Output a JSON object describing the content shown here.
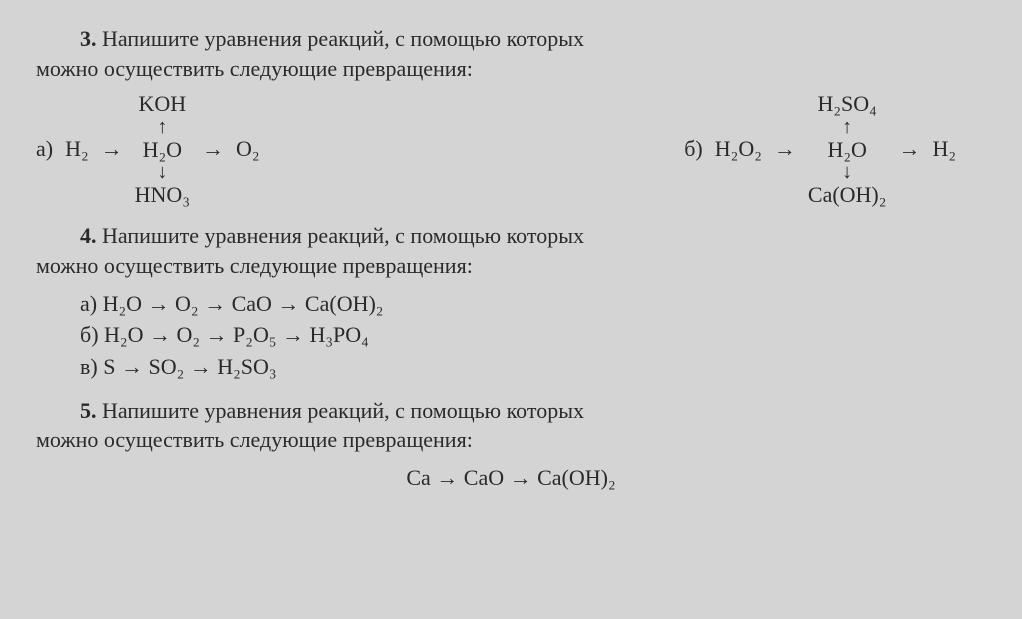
{
  "task3": {
    "number": "3.",
    "prompt_a": "Напишите уравнения реакций, с помощью которых",
    "prompt_b": "можно осуществить следующие превращения:",
    "scheme_a": {
      "label": "а)",
      "top": "KOH",
      "left": "H₂",
      "center": "H₂O",
      "right": "O₂",
      "bottom": "HNO₃"
    },
    "scheme_b": {
      "label": "б)",
      "top": "H₂SO₄",
      "left": "H₂O₂",
      "center": "H₂O",
      "right": "H₂",
      "bottom": "Ca(OH)₂"
    }
  },
  "task4": {
    "number": "4.",
    "prompt_a": "Напишите уравнения реакций, с помощью которых",
    "prompt_b": "можно осуществить следующие превращения:",
    "items": [
      {
        "label": "а)",
        "chain": "H₂O  →  O₂  →  CaO  →  Ca(OH)₂"
      },
      {
        "label": "б)",
        "chain": "H₂O  →  O₂  →  P₂O₅  →  H₃PO₄"
      },
      {
        "label": "в)",
        "chain": "S  →  SO₂  →  H₂SO₃"
      }
    ]
  },
  "task5": {
    "number": "5.",
    "prompt_a": "Напишите уравнения реакций, с помощью которых",
    "prompt_b": "можно осуществить следующие превращения:",
    "chain": "Ca  →  CaO  →  Ca(OH)₂"
  },
  "arrows": {
    "right": "→",
    "up": "↑",
    "down": "↓"
  }
}
